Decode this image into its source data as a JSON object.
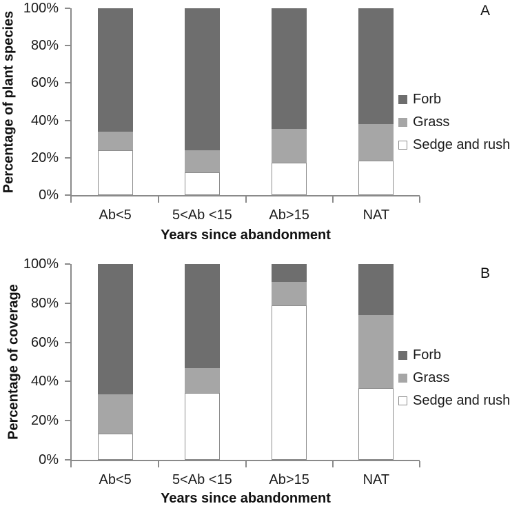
{
  "figure": {
    "background": "#ffffff"
  },
  "colors": {
    "forb": "#6e6e6e",
    "grass": "#a6a6a6",
    "sedge_fill": "#ffffff",
    "sedge_border": "#8c8c8c",
    "axis": "#8a8a8a",
    "text": "#1a1a1a"
  },
  "chart_data": [
    {
      "panel_label": "A",
      "type": "bar",
      "subtype": "stacked-100",
      "title": "",
      "xlabel": "Years since abandonment",
      "ylabel": "Percentage of plant species",
      "categories": [
        "Ab<5",
        "5<Ab <15",
        "Ab>15",
        "NAT"
      ],
      "y_ticks": [
        "0%",
        "20%",
        "40%",
        "60%",
        "80%",
        "100%"
      ],
      "ylim": [
        0,
        100
      ],
      "grid": "off",
      "legend_position": "right",
      "legend": [
        "Forb",
        "Grass",
        "Sedge and rush"
      ],
      "series": [
        {
          "name": "Sedge and rush",
          "color": "#ffffff",
          "border": "#8c8c8c",
          "values": [
            24,
            12,
            17.5,
            18.5
          ]
        },
        {
          "name": "Grass",
          "color": "#a6a6a6",
          "values": [
            10,
            12,
            18,
            19.5
          ]
        },
        {
          "name": "Forb",
          "color": "#6e6e6e",
          "values": [
            66,
            76,
            64.5,
            62
          ]
        }
      ]
    },
    {
      "panel_label": "B",
      "type": "bar",
      "subtype": "stacked-100",
      "title": "",
      "xlabel": "Years since abandonment",
      "ylabel": "Percentage of coverage",
      "categories": [
        "Ab<5",
        "5<Ab <15",
        "Ab>15",
        "NAT"
      ],
      "y_ticks": [
        "0%",
        "20%",
        "40%",
        "60%",
        "80%",
        "100%"
      ],
      "ylim": [
        0,
        100
      ],
      "grid": "off",
      "legend_position": "right",
      "legend": [
        "Forb",
        "Grass",
        "Sedge and rush"
      ],
      "series": [
        {
          "name": "Sedge and rush",
          "color": "#ffffff",
          "border": "#8c8c8c",
          "values": [
            13.5,
            34,
            79,
            36.5
          ]
        },
        {
          "name": "Grass",
          "color": "#a6a6a6",
          "values": [
            20,
            13,
            12,
            37.5
          ]
        },
        {
          "name": "Forb",
          "color": "#6e6e6e",
          "values": [
            66.5,
            53,
            9,
            26
          ]
        }
      ]
    }
  ]
}
